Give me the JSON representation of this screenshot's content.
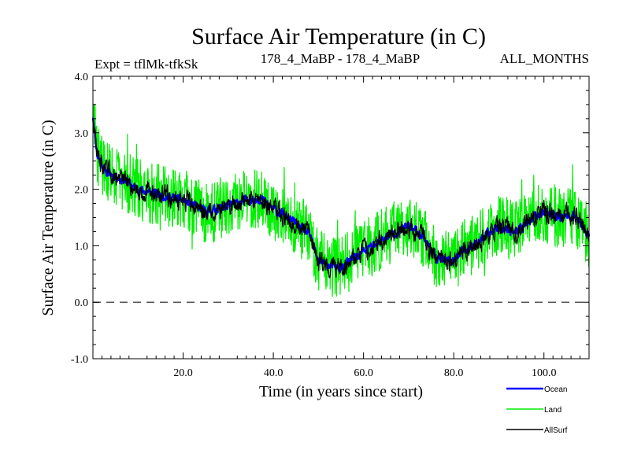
{
  "chart_data": {
    "type": "line",
    "title": "Surface Air Temperature (in C)",
    "subtitle_left": "Expt = tflMk-tfkSk",
    "subtitle_center": "178_4_MaBP - 178_4_MaBP",
    "subtitle_right": "ALL_MONTHS",
    "xlabel": "Time (in years since start)",
    "ylabel": "Surface Air Temperature (in C)",
    "xlim": [
      0,
      110
    ],
    "ylim": [
      -1.0,
      4.0
    ],
    "x_ticks": [
      20,
      40,
      60,
      80,
      100
    ],
    "x_tick_labels": [
      "20.0",
      "40.0",
      "60.0",
      "80.0",
      "100.0"
    ],
    "y_ticks": [
      -1,
      0,
      1,
      2,
      3,
      4
    ],
    "y_tick_labels": [
      "-1.0",
      "0.0",
      "1.0",
      "2.0",
      "3.0",
      "4.0"
    ],
    "reference_line": 0.0,
    "legend_position": "bottom-right",
    "series_trend": {
      "x": [
        0,
        1,
        3,
        6,
        10,
        15,
        20,
        25,
        30,
        34,
        37,
        40,
        44,
        48,
        50,
        52,
        55,
        58,
        62,
        66,
        70,
        73,
        76,
        79,
        82,
        86,
        90,
        94,
        97,
        100,
        104,
        107,
        110
      ],
      "y": [
        3.3,
        2.6,
        2.3,
        2.2,
        2.0,
        1.9,
        1.8,
        1.6,
        1.7,
        1.8,
        1.85,
        1.65,
        1.45,
        1.2,
        0.75,
        0.65,
        0.6,
        0.8,
        1.0,
        1.2,
        1.35,
        1.2,
        0.8,
        0.7,
        0.9,
        1.1,
        1.35,
        1.25,
        1.45,
        1.6,
        1.5,
        1.55,
        1.15
      ]
    },
    "series": [
      {
        "name": "Ocean",
        "color": "#0000ff",
        "noise": 0.07
      },
      {
        "name": "Land",
        "color": "#00ee00",
        "noise": 0.55
      },
      {
        "name": "AllSurf",
        "color": "#000000",
        "noise": 0.16
      }
    ]
  }
}
